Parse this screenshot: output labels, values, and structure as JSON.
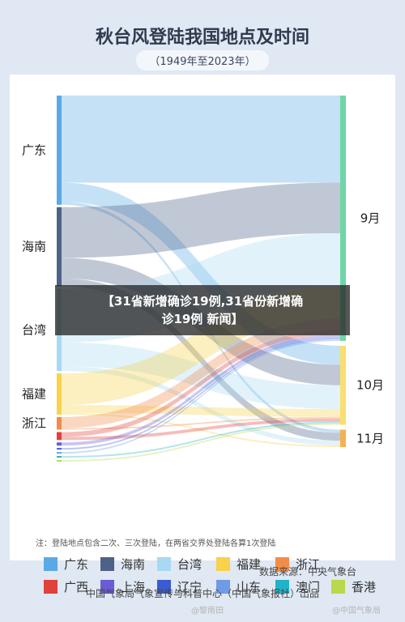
{
  "header": {
    "title": "秋台风登陆我国地点及时间",
    "subtitle": "（1949年至2023年）"
  },
  "chart_data": {
    "type": "sankey",
    "title": "秋台风登陆我国地点及时间",
    "subtitle": "（1949年至2023年）",
    "sources": [
      {
        "name": "广东",
        "color": "#5aa9e6",
        "label_shown": true
      },
      {
        "name": "海南",
        "color": "#4e6186",
        "label_shown": true
      },
      {
        "name": "台湾",
        "color": "#a9d9f2",
        "label_shown": true
      },
      {
        "name": "福建",
        "color": "#f7d24a",
        "label_shown": true
      },
      {
        "name": "浙江",
        "color": "#f08d4a",
        "label_shown": true
      },
      {
        "name": "广西",
        "color": "#e0413c",
        "label_shown": false
      },
      {
        "name": "上海",
        "color": "#6b5bd4",
        "label_shown": false
      },
      {
        "name": "辽宁",
        "color": "#3a5bd1",
        "label_shown": false
      },
      {
        "name": "山东",
        "color": "#6f9be6",
        "label_shown": false
      },
      {
        "name": "澳门",
        "color": "#21b3c9",
        "label_shown": false
      },
      {
        "name": "香港",
        "color": "#b8d94a",
        "label_shown": false
      }
    ],
    "targets": [
      {
        "name": "9月",
        "color": "#6fd6a6"
      },
      {
        "name": "10月",
        "color": "#f9df70"
      },
      {
        "name": "11月",
        "color": "#f5b252"
      }
    ],
    "flows": [
      {
        "source": "广东",
        "target": "9月",
        "value": 55
      },
      {
        "source": "广东",
        "target": "10月",
        "value": 12
      },
      {
        "source": "广东",
        "target": "11月",
        "value": 2
      },
      {
        "source": "海南",
        "target": "9月",
        "value": 32
      },
      {
        "source": "海南",
        "target": "10月",
        "value": 13
      },
      {
        "source": "海南",
        "target": "11月",
        "value": 5
      },
      {
        "source": "台湾",
        "target": "9月",
        "value": 34
      },
      {
        "source": "台湾",
        "target": "10月",
        "value": 15
      },
      {
        "source": "台湾",
        "target": "11月",
        "value": 3
      },
      {
        "source": "福建",
        "target": "9月",
        "value": 20
      },
      {
        "source": "福建",
        "target": "10月",
        "value": 5
      },
      {
        "source": "福建",
        "target": "11月",
        "value": 1
      },
      {
        "source": "浙江",
        "target": "9月",
        "value": 7
      },
      {
        "source": "浙江",
        "target": "10月",
        "value": 1
      },
      {
        "source": "广西",
        "target": "9月",
        "value": 3
      },
      {
        "source": "广西",
        "target": "10月",
        "value": 2
      },
      {
        "source": "上海",
        "target": "9月",
        "value": 2
      },
      {
        "source": "辽宁",
        "target": "9月",
        "value": 1
      },
      {
        "source": "山东",
        "target": "9月",
        "value": 1
      },
      {
        "source": "澳门",
        "target": "10月",
        "value": 1
      },
      {
        "source": "香港",
        "target": "10月",
        "value": 1
      }
    ]
  },
  "legend_title": "",
  "note": "注：登陆地点包含二次、三次登陆，在两省交界处登陆各算1次登陆",
  "source_line": "数据来源：中央气象台",
  "footer": "中国气象局气象宣传与科普中心（中国气象报社）出品",
  "overlay": {
    "line1": "【31省新增确诊19例,31省份新增确",
    "line2": "诊19例 新闻】"
  },
  "watermark": {
    "left": "@黎南田",
    "right": "@中国气象局"
  }
}
